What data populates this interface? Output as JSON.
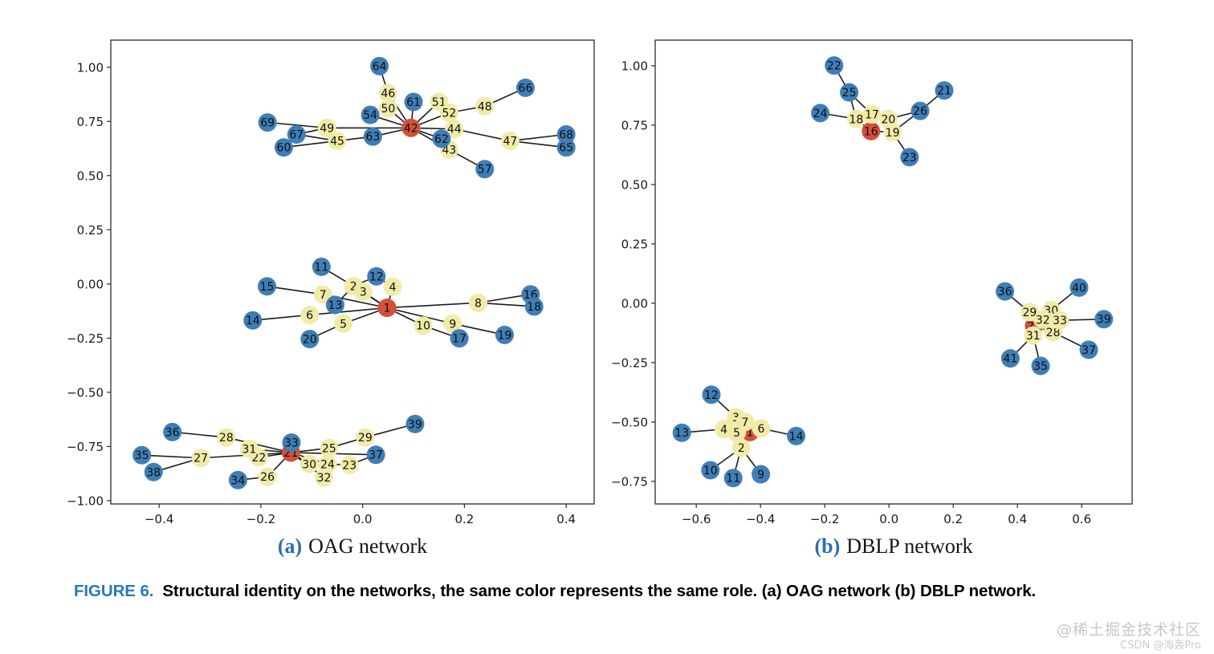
{
  "colors": {
    "hub": "#d4503a",
    "mid": "#f1eba8",
    "leaf": "#3f7eb6",
    "edge": "#1c1c1c",
    "spine": "#2b2b2b",
    "tick_text": "#1a1a1a",
    "node_label": "#101010",
    "caption_tag": "#2679bc",
    "subcaption_letter": "#2a6db4"
  },
  "subcaptions": {
    "a_letter": "(a)",
    "a_text": "OAG network",
    "b_letter": "(b)",
    "b_text": "DBLP network"
  },
  "caption": {
    "tag": "FIGURE 6.",
    "text": "Structural identity on the networks, the same color represents the same role. (a) OAG network (b) DBLP network."
  },
  "watermark": {
    "line1": "@稀土掘金技术社区",
    "line2": "CSDN @海轰Pro"
  },
  "chart_data": [
    {
      "id": "a",
      "type": "scatter",
      "subtype": "network",
      "title": "(a) OAG network",
      "legend": "none",
      "grid": false,
      "xlim": [
        -0.495,
        0.455
      ],
      "ylim": [
        -1.015,
        1.125
      ],
      "xticks": [
        {
          "v": -0.4,
          "label": "−0.4"
        },
        {
          "v": -0.2,
          "label": "−0.2"
        },
        {
          "v": 0.0,
          "label": "0.0"
        },
        {
          "v": 0.2,
          "label": "0.2"
        },
        {
          "v": 0.4,
          "label": "0.4"
        }
      ],
      "yticks": [
        {
          "v": -1.0,
          "label": "−1.00"
        },
        {
          "v": -0.75,
          "label": "−0.75"
        },
        {
          "v": -0.5,
          "label": "−0.50"
        },
        {
          "v": -0.25,
          "label": "−0.25"
        },
        {
          "v": 0.0,
          "label": "0.00"
        },
        {
          "v": 0.25,
          "label": "0.25"
        },
        {
          "v": 0.5,
          "label": "0.50"
        },
        {
          "v": 0.75,
          "label": "0.75"
        },
        {
          "v": 1.0,
          "label": "1.00"
        }
      ],
      "nodes": [
        {
          "id": "1",
          "x": 0.048,
          "y": -0.11,
          "role": "hub"
        },
        {
          "id": "2",
          "x": -0.018,
          "y": -0.01,
          "role": "mid"
        },
        {
          "id": "3",
          "x": 0.001,
          "y": -0.036,
          "role": "mid"
        },
        {
          "id": "4",
          "x": 0.059,
          "y": -0.013,
          "role": "mid"
        },
        {
          "id": "5",
          "x": -0.038,
          "y": -0.183,
          "role": "mid"
        },
        {
          "id": "6",
          "x": -0.104,
          "y": -0.143,
          "role": "mid"
        },
        {
          "id": "7",
          "x": -0.078,
          "y": -0.048,
          "role": "mid"
        },
        {
          "id": "8",
          "x": 0.227,
          "y": -0.087,
          "role": "mid"
        },
        {
          "id": "9",
          "x": 0.177,
          "y": -0.183,
          "role": "mid"
        },
        {
          "id": "10",
          "x": 0.119,
          "y": -0.192,
          "role": "mid"
        },
        {
          "id": "11",
          "x": -0.081,
          "y": 0.079,
          "role": "leaf"
        },
        {
          "id": "12",
          "x": 0.027,
          "y": 0.035,
          "role": "leaf"
        },
        {
          "id": "13",
          "x": -0.054,
          "y": -0.097,
          "role": "leaf"
        },
        {
          "id": "14",
          "x": -0.216,
          "y": -0.168,
          "role": "leaf"
        },
        {
          "id": "15",
          "x": -0.188,
          "y": -0.011,
          "role": "leaf"
        },
        {
          "id": "16",
          "x": 0.33,
          "y": -0.048,
          "role": "leaf"
        },
        {
          "id": "17",
          "x": 0.19,
          "y": -0.251,
          "role": "leaf"
        },
        {
          "id": "18",
          "x": 0.337,
          "y": -0.104,
          "role": "leaf"
        },
        {
          "id": "19",
          "x": 0.279,
          "y": -0.235,
          "role": "leaf"
        },
        {
          "id": "20",
          "x": -0.104,
          "y": -0.254,
          "role": "leaf"
        },
        {
          "id": "21",
          "x": -0.141,
          "y": -0.778,
          "role": "hub"
        },
        {
          "id": "22",
          "x": -0.204,
          "y": -0.8,
          "role": "mid"
        },
        {
          "id": "23",
          "x": -0.026,
          "y": -0.835,
          "role": "mid"
        },
        {
          "id": "24",
          "x": -0.069,
          "y": -0.831,
          "role": "mid"
        },
        {
          "id": "25",
          "x": -0.066,
          "y": -0.757,
          "role": "mid"
        },
        {
          "id": "26",
          "x": -0.187,
          "y": -0.89,
          "role": "mid"
        },
        {
          "id": "27",
          "x": -0.318,
          "y": -0.803,
          "role": "mid"
        },
        {
          "id": "28",
          "x": -0.268,
          "y": -0.708,
          "role": "mid"
        },
        {
          "id": "29",
          "x": 0.005,
          "y": -0.708,
          "role": "mid"
        },
        {
          "id": "30",
          "x": -0.105,
          "y": -0.831,
          "role": "mid"
        },
        {
          "id": "31",
          "x": -0.223,
          "y": -0.761,
          "role": "mid"
        },
        {
          "id": "32",
          "x": -0.076,
          "y": -0.893,
          "role": "mid"
        },
        {
          "id": "33",
          "x": -0.14,
          "y": -0.732,
          "role": "leaf"
        },
        {
          "id": "34",
          "x": -0.245,
          "y": -0.905,
          "role": "leaf"
        },
        {
          "id": "35",
          "x": -0.434,
          "y": -0.79,
          "role": "leaf"
        },
        {
          "id": "36",
          "x": -0.374,
          "y": -0.683,
          "role": "leaf"
        },
        {
          "id": "37",
          "x": 0.026,
          "y": -0.788,
          "role": "leaf"
        },
        {
          "id": "38",
          "x": -0.411,
          "y": -0.868,
          "role": "leaf"
        },
        {
          "id": "39",
          "x": 0.103,
          "y": -0.646,
          "role": "leaf"
        },
        {
          "id": "42",
          "x": 0.095,
          "y": 0.72,
          "role": "hub"
        },
        {
          "id": "43",
          "x": 0.17,
          "y": 0.62,
          "role": "mid"
        },
        {
          "id": "44",
          "x": 0.18,
          "y": 0.715,
          "role": "mid"
        },
        {
          "id": "45",
          "x": -0.05,
          "y": 0.66,
          "role": "mid"
        },
        {
          "id": "46",
          "x": 0.05,
          "y": 0.88,
          "role": "mid"
        },
        {
          "id": "47",
          "x": 0.29,
          "y": 0.66,
          "role": "mid"
        },
        {
          "id": "48",
          "x": 0.24,
          "y": 0.82,
          "role": "mid"
        },
        {
          "id": "49",
          "x": -0.07,
          "y": 0.72,
          "role": "mid"
        },
        {
          "id": "50",
          "x": 0.05,
          "y": 0.81,
          "role": "mid"
        },
        {
          "id": "51",
          "x": 0.15,
          "y": 0.84,
          "role": "mid"
        },
        {
          "id": "52",
          "x": 0.17,
          "y": 0.79,
          "role": "mid"
        },
        {
          "id": "54",
          "x": 0.015,
          "y": 0.78,
          "role": "leaf"
        },
        {
          "id": "57",
          "x": 0.24,
          "y": 0.53,
          "role": "leaf"
        },
        {
          "id": "60",
          "x": -0.155,
          "y": 0.63,
          "role": "leaf"
        },
        {
          "id": "61",
          "x": 0.1,
          "y": 0.84,
          "role": "leaf"
        },
        {
          "id": "62",
          "x": 0.155,
          "y": 0.67,
          "role": "leaf"
        },
        {
          "id": "63",
          "x": 0.02,
          "y": 0.68,
          "role": "leaf"
        },
        {
          "id": "64",
          "x": 0.033,
          "y": 1.005,
          "role": "leaf"
        },
        {
          "id": "65",
          "x": 0.4,
          "y": 0.63,
          "role": "leaf"
        },
        {
          "id": "66",
          "x": 0.32,
          "y": 0.905,
          "role": "leaf"
        },
        {
          "id": "67",
          "x": -0.13,
          "y": 0.69,
          "role": "leaf"
        },
        {
          "id": "68",
          "x": 0.4,
          "y": 0.69,
          "role": "leaf"
        },
        {
          "id": "69",
          "x": -0.187,
          "y": 0.745,
          "role": "leaf"
        }
      ],
      "edges": [
        [
          "64",
          "46"
        ],
        [
          "46",
          "42"
        ],
        [
          "50",
          "42"
        ],
        [
          "54",
          "42"
        ],
        [
          "61",
          "42"
        ],
        [
          "51",
          "42"
        ],
        [
          "52",
          "42"
        ],
        [
          "48",
          "52"
        ],
        [
          "48",
          "66"
        ],
        [
          "49",
          "42"
        ],
        [
          "49",
          "69"
        ],
        [
          "67",
          "49"
        ],
        [
          "67",
          "45"
        ],
        [
          "60",
          "45"
        ],
        [
          "45",
          "63"
        ],
        [
          "63",
          "42"
        ],
        [
          "42",
          "44"
        ],
        [
          "42",
          "62"
        ],
        [
          "42",
          "43"
        ],
        [
          "43",
          "57"
        ],
        [
          "44",
          "47"
        ],
        [
          "47",
          "68"
        ],
        [
          "47",
          "65"
        ],
        [
          "11",
          "2"
        ],
        [
          "2",
          "12"
        ],
        [
          "12",
          "4"
        ],
        [
          "2",
          "13"
        ],
        [
          "7",
          "13"
        ],
        [
          "15",
          "7"
        ],
        [
          "2",
          "1"
        ],
        [
          "3",
          "1"
        ],
        [
          "4",
          "1"
        ],
        [
          "7",
          "1"
        ],
        [
          "6",
          "1"
        ],
        [
          "5",
          "1"
        ],
        [
          "14",
          "6"
        ],
        [
          "20",
          "5"
        ],
        [
          "1",
          "8"
        ],
        [
          "8",
          "16"
        ],
        [
          "8",
          "18"
        ],
        [
          "1",
          "10"
        ],
        [
          "1",
          "9"
        ],
        [
          "10",
          "17"
        ],
        [
          "9",
          "19"
        ],
        [
          "36",
          "28"
        ],
        [
          "28",
          "21"
        ],
        [
          "35",
          "27"
        ],
        [
          "38",
          "27"
        ],
        [
          "27",
          "21"
        ],
        [
          "31",
          "21"
        ],
        [
          "22",
          "21"
        ],
        [
          "33",
          "21"
        ],
        [
          "21",
          "25"
        ],
        [
          "25",
          "29"
        ],
        [
          "29",
          "39"
        ],
        [
          "21",
          "37"
        ],
        [
          "21",
          "30"
        ],
        [
          "21",
          "24"
        ],
        [
          "24",
          "23"
        ],
        [
          "23",
          "37"
        ],
        [
          "21",
          "32"
        ],
        [
          "21",
          "26"
        ],
        [
          "26",
          "34"
        ]
      ]
    },
    {
      "id": "b",
      "type": "scatter",
      "subtype": "network",
      "title": "(b) DBLP network",
      "legend": "none",
      "grid": false,
      "xlim": [
        -0.728,
        0.757
      ],
      "ylim": [
        -0.845,
        1.108
      ],
      "xticks": [
        {
          "v": -0.6,
          "label": "−0.6"
        },
        {
          "v": -0.4,
          "label": "−0.4"
        },
        {
          "v": -0.2,
          "label": "−0.2"
        },
        {
          "v": 0.0,
          "label": "0.0"
        },
        {
          "v": 0.2,
          "label": "0.2"
        },
        {
          "v": 0.4,
          "label": "0.4"
        },
        {
          "v": 0.6,
          "label": "0.6"
        }
      ],
      "yticks": [
        {
          "v": -0.75,
          "label": "−0.75"
        },
        {
          "v": -0.5,
          "label": "−0.50"
        },
        {
          "v": -0.25,
          "label": "−0.25"
        },
        {
          "v": 0.0,
          "label": "0.00"
        },
        {
          "v": 0.25,
          "label": "0.25"
        },
        {
          "v": 0.5,
          "label": "0.50"
        },
        {
          "v": 0.75,
          "label": "0.75"
        },
        {
          "v": 1.0,
          "label": "1.00"
        }
      ],
      "nodes": [
        {
          "id": "16",
          "x": -0.056,
          "y": 0.725,
          "role": "hub"
        },
        {
          "id": "17",
          "x": -0.053,
          "y": 0.795,
          "role": "mid"
        },
        {
          "id": "18",
          "x": -0.102,
          "y": 0.776,
          "role": "mid"
        },
        {
          "id": "19",
          "x": 0.011,
          "y": 0.72,
          "role": "mid"
        },
        {
          "id": "20",
          "x": -0.002,
          "y": 0.776,
          "role": "mid"
        },
        {
          "id": "21",
          "x": 0.172,
          "y": 0.896,
          "role": "leaf"
        },
        {
          "id": "22",
          "x": -0.171,
          "y": 1.001,
          "role": "leaf"
        },
        {
          "id": "23",
          "x": 0.064,
          "y": 0.615,
          "role": "leaf"
        },
        {
          "id": "24",
          "x": -0.214,
          "y": 0.801,
          "role": "leaf"
        },
        {
          "id": "25",
          "x": -0.124,
          "y": 0.888,
          "role": "leaf"
        },
        {
          "id": "26",
          "x": 0.097,
          "y": 0.81,
          "role": "leaf"
        },
        {
          "id": "27",
          "x": 0.452,
          "y": -0.095,
          "role": "hub"
        },
        {
          "id": "28",
          "x": 0.511,
          "y": -0.122,
          "role": "mid"
        },
        {
          "id": "29",
          "x": 0.438,
          "y": -0.038,
          "role": "mid"
        },
        {
          "id": "30",
          "x": 0.505,
          "y": -0.029,
          "role": "mid"
        },
        {
          "id": "31",
          "x": 0.449,
          "y": -0.136,
          "role": "mid"
        },
        {
          "id": "32",
          "x": 0.479,
          "y": -0.069,
          "role": "mid"
        },
        {
          "id": "33",
          "x": 0.532,
          "y": -0.072,
          "role": "mid"
        },
        {
          "id": "35",
          "x": 0.472,
          "y": -0.264,
          "role": "leaf"
        },
        {
          "id": "36",
          "x": 0.361,
          "y": 0.05,
          "role": "leaf"
        },
        {
          "id": "37",
          "x": 0.622,
          "y": -0.196,
          "role": "leaf"
        },
        {
          "id": "39",
          "x": 0.669,
          "y": -0.067,
          "role": "leaf"
        },
        {
          "id": "40",
          "x": 0.592,
          "y": 0.066,
          "role": "leaf"
        },
        {
          "id": "41",
          "x": 0.378,
          "y": -0.232,
          "role": "leaf"
        },
        {
          "id": "1",
          "x": -0.433,
          "y": -0.542,
          "role": "hub"
        },
        {
          "id": "2",
          "x": -0.46,
          "y": -0.609,
          "role": "mid"
        },
        {
          "id": "3",
          "x": -0.477,
          "y": -0.48,
          "role": "mid"
        },
        {
          "id": "4",
          "x": -0.514,
          "y": -0.53,
          "role": "mid"
        },
        {
          "id": "5",
          "x": -0.474,
          "y": -0.545,
          "role": "mid"
        },
        {
          "id": "6",
          "x": -0.398,
          "y": -0.527,
          "role": "mid"
        },
        {
          "id": "7",
          "x": -0.448,
          "y": -0.5,
          "role": "mid"
        },
        {
          "id": "9",
          "x": -0.399,
          "y": -0.72,
          "role": "leaf"
        },
        {
          "id": "10",
          "x": -0.556,
          "y": -0.703,
          "role": "leaf"
        },
        {
          "id": "11",
          "x": -0.485,
          "y": -0.736,
          "role": "leaf"
        },
        {
          "id": "12",
          "x": -0.553,
          "y": -0.385,
          "role": "leaf"
        },
        {
          "id": "13",
          "x": -0.645,
          "y": -0.545,
          "role": "leaf"
        },
        {
          "id": "14",
          "x": -0.289,
          "y": -0.559,
          "role": "leaf"
        }
      ],
      "edges": [
        [
          "22",
          "25"
        ],
        [
          "25",
          "18"
        ],
        [
          "25",
          "17"
        ],
        [
          "24",
          "18"
        ],
        [
          "18",
          "16"
        ],
        [
          "17",
          "16"
        ],
        [
          "17",
          "20"
        ],
        [
          "20",
          "19"
        ],
        [
          "20",
          "26"
        ],
        [
          "26",
          "21"
        ],
        [
          "26",
          "19"
        ],
        [
          "19",
          "16"
        ],
        [
          "19",
          "23"
        ],
        [
          "36",
          "29"
        ],
        [
          "29",
          "27"
        ],
        [
          "40",
          "30"
        ],
        [
          "30",
          "27"
        ],
        [
          "32",
          "27"
        ],
        [
          "33",
          "27"
        ],
        [
          "33",
          "39"
        ],
        [
          "28",
          "27"
        ],
        [
          "28",
          "37"
        ],
        [
          "31",
          "27"
        ],
        [
          "31",
          "41"
        ],
        [
          "31",
          "35"
        ],
        [
          "12",
          "3"
        ],
        [
          "3",
          "1"
        ],
        [
          "13",
          "4"
        ],
        [
          "4",
          "1"
        ],
        [
          "5",
          "1"
        ],
        [
          "7",
          "1"
        ],
        [
          "6",
          "1"
        ],
        [
          "6",
          "14"
        ],
        [
          "2",
          "1"
        ],
        [
          "2",
          "10"
        ],
        [
          "2",
          "11"
        ],
        [
          "2",
          "9"
        ]
      ]
    }
  ]
}
